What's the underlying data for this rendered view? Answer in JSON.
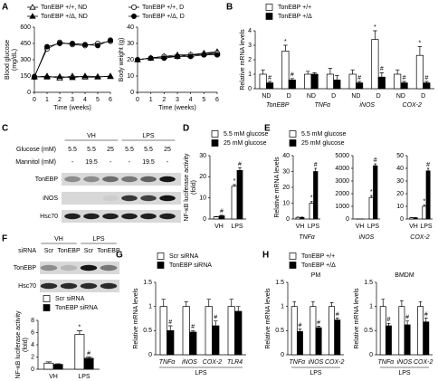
{
  "chart_data": [
    {
      "panel": "A",
      "type": "line",
      "ylabel": [
        "Blood glucose",
        "(mg/dL)"
      ],
      "xlabel": "Time (weeks)",
      "x": [
        0,
        1,
        2,
        3,
        4,
        5,
        6
      ],
      "xlim": [
        0,
        6
      ],
      "xticks": [
        0,
        1,
        2,
        3,
        4,
        5,
        6
      ],
      "ylim": [
        0,
        600
      ],
      "yticks": [
        0,
        150,
        300,
        450,
        600
      ],
      "legend": true,
      "series": [
        {
          "name": "TonEBP +/+, ND",
          "marker": "triangle",
          "color": "#ffffff",
          "values": [
            140,
            150,
            130,
            150,
            140,
            140,
            150
          ]
        },
        {
          "name": "TonEBP +/Δ, ND",
          "marker": "triangle",
          "color": "#000000",
          "values": [
            145,
            140,
            145,
            135,
            150,
            145,
            145
          ]
        },
        {
          "name": "TonEBP +/+, D",
          "marker": "circle",
          "color": "#ffffff",
          "values": [
            145,
            400,
            460,
            440,
            430,
            450,
            470
          ]
        },
        {
          "name": "TonEBP +/Δ, D",
          "marker": "circle",
          "color": "#000000",
          "values": [
            140,
            420,
            450,
            450,
            440,
            430,
            480
          ]
        }
      ]
    },
    {
      "type": "line",
      "ylabel": "Body weight (g)",
      "xlabel": "Time (weeks)",
      "x": [
        0,
        1,
        2,
        3,
        4,
        5,
        6
      ],
      "xlim": [
        0,
        6
      ],
      "xticks": [
        0,
        1,
        2,
        3,
        4,
        5,
        6
      ],
      "ylim": [
        0,
        40
      ],
      "yticks": [
        0,
        10,
        20,
        30,
        40
      ],
      "legend": false,
      "series": [
        {
          "name": "TonEBP +/+, ND",
          "marker": "triangle",
          "color": "#ffffff",
          "values": [
            20,
            21,
            22,
            23,
            23,
            24,
            25
          ]
        },
        {
          "name": "TonEBP +/Δ, ND",
          "marker": "triangle",
          "color": "#000000",
          "values": [
            20,
            21,
            22,
            22,
            23,
            24,
            24
          ]
        },
        {
          "name": "TonEBP +/+, D",
          "marker": "circle",
          "color": "#ffffff",
          "values": [
            20,
            21,
            22,
            22,
            23,
            23,
            24
          ]
        },
        {
          "name": "TonEBP +/Δ, D",
          "marker": "circle",
          "color": "#000000",
          "values": [
            20,
            21,
            21,
            22,
            22,
            23,
            23
          ]
        }
      ]
    },
    {
      "panel": "B",
      "type": "bar",
      "ylabel": "Relative mRNA levels",
      "ylim": [
        0,
        4
      ],
      "yticks": [
        0,
        1,
        2,
        3,
        4
      ],
      "categories": [
        "ND",
        "D",
        "ND",
        "D",
        "ND",
        "D",
        "ND",
        "D"
      ],
      "groups": [
        "TonEBP",
        "TNFα",
        "iNOS",
        "COX-2"
      ],
      "legend": true,
      "series": [
        {
          "name": "TonEBP +/+",
          "color": "#ffffff",
          "values": [
            1,
            2.6,
            1,
            1,
            1,
            3.4,
            1,
            2.3
          ],
          "errors": [
            0.3,
            0.4,
            0.2,
            0.4,
            0.3,
            0.6,
            0.3,
            0.6
          ],
          "markers": [
            null,
            "*",
            null,
            null,
            null,
            "*",
            null,
            "*"
          ]
        },
        {
          "name": "TonEBP +/Δ",
          "color": "#000000",
          "values": [
            0.4,
            0.6,
            1,
            0.6,
            0.4,
            0.8,
            0.4,
            0.4
          ],
          "errors": [
            0.1,
            0.1,
            0.1,
            0.3,
            0.1,
            0.3,
            0.1,
            0.1
          ],
          "markers": [
            "#",
            "#",
            null,
            null,
            "#",
            "#",
            "#",
            "#"
          ]
        }
      ]
    },
    {
      "panel": "D",
      "type": "bar",
      "ylabel": [
        "NF-κB luciferase activity",
        "(fold)"
      ],
      "categories": [
        "VH",
        "LPS"
      ],
      "ylim": [
        0,
        30
      ],
      "yticks": [
        0,
        10,
        20,
        30
      ],
      "legend": true,
      "series": [
        {
          "name": "5.5 mM glucose",
          "color": "#ffffff",
          "values": [
            1,
            15.5
          ],
          "errors": [
            0.2,
            0.8
          ],
          "markers": [
            null,
            "*"
          ]
        },
        {
          "name": "25 mM glucose",
          "color": "#000000",
          "values": [
            1.5,
            23
          ],
          "errors": [
            0.3,
            1.2
          ],
          "markers": [
            "#",
            "#"
          ]
        }
      ]
    },
    {
      "panel": "E",
      "type": "bar",
      "ylabel": "Relative mRNA levels",
      "xlabel": "TNFα",
      "categories": [
        "VH",
        "LPS"
      ],
      "ylim": [
        0,
        40
      ],
      "yticks": [
        0,
        10,
        20,
        30,
        40
      ],
      "legend": true,
      "series": [
        {
          "name": "5.5 mM glucose",
          "color": "#ffffff",
          "values": [
            1,
            10
          ],
          "errors": [
            0.2,
            1
          ],
          "markers": [
            null,
            "*"
          ]
        },
        {
          "name": "25 mM glucose",
          "color": "#000000",
          "values": [
            1,
            30
          ],
          "errors": [
            0.2,
            2
          ],
          "markers": [
            null,
            "#"
          ]
        }
      ]
    },
    {
      "type": "bar",
      "xlabel": "iNOS",
      "categories": [
        "VH",
        "LPS"
      ],
      "ylim": [
        0,
        5000
      ],
      "yticks": [
        0,
        1000,
        2000,
        3000,
        4000,
        5000
      ],
      "legend": false,
      "series": [
        {
          "name": "5.5 mM glucose",
          "color": "#ffffff",
          "values": [
            1,
            1700
          ],
          "errors": [
            0,
            150
          ],
          "markers": [
            null,
            "*"
          ]
        },
        {
          "name": "25 mM glucose",
          "color": "#000000",
          "values": [
            1,
            4200
          ],
          "errors": [
            0,
            150
          ],
          "markers": [
            null,
            "#"
          ]
        }
      ]
    },
    {
      "type": "bar",
      "xlabel": "COX-2",
      "categories": [
        "VH",
        "LPS"
      ],
      "ylim": [
        0,
        50
      ],
      "yticks": [
        0,
        10,
        20,
        30,
        40,
        50
      ],
      "legend": false,
      "series": [
        {
          "name": "5.5 mM glucose",
          "color": "#ffffff",
          "values": [
            1,
            10
          ],
          "errors": [
            0.2,
            1
          ],
          "markers": [
            null,
            "*"
          ]
        },
        {
          "name": "25 mM glucose",
          "color": "#000000",
          "values": [
            1,
            38
          ],
          "errors": [
            0.2,
            2
          ],
          "markers": [
            null,
            "#"
          ]
        }
      ]
    },
    {
      "type": "bar",
      "ylabel": [
        "NF-κB luciferase activity",
        "(fold)"
      ],
      "categories": [
        "VH",
        "LPS"
      ],
      "ylim": [
        0,
        8
      ],
      "yticks": [
        0,
        2,
        4,
        6,
        8
      ],
      "legend": true,
      "series": [
        {
          "name": "Scr siRNA",
          "color": "#ffffff",
          "values": [
            1,
            5.7
          ],
          "errors": [
            0.2,
            0.6
          ],
          "markers": [
            null,
            "*"
          ]
        },
        {
          "name": "TonEBP siRNA",
          "color": "#000000",
          "values": [
            0.8,
            1.8
          ],
          "errors": [
            0.1,
            0.2
          ],
          "markers": [
            null,
            "#"
          ]
        }
      ]
    },
    {
      "panel": "G",
      "type": "bar",
      "ylabel": "Relative mRNA levels",
      "xlabel": "LPS",
      "categories": [
        "TNFα",
        "iNOS",
        "COX-2",
        "TLR4"
      ],
      "ylim": [
        0,
        1.5
      ],
      "yticks": [
        0,
        0.5,
        1,
        1.5
      ],
      "legend": true,
      "series": [
        {
          "name": "Scr siRNA",
          "color": "#ffffff",
          "values": [
            1,
            1,
            1,
            1
          ],
          "errors": [
            0.15,
            0.1,
            0.15,
            0.15
          ],
          "markers": [
            null,
            null,
            null,
            null
          ]
        },
        {
          "name": "TonEBP siRNA",
          "color": "#000000",
          "values": [
            0.5,
            0.47,
            0.6,
            0.9
          ],
          "errors": [
            0.1,
            0.03,
            0.1,
            0.1
          ],
          "markers": [
            "#",
            "#",
            "#",
            null
          ]
        }
      ]
    },
    {
      "panel": "H",
      "type": "bar",
      "title": "PM",
      "ylabel": "Relative mRNA levels",
      "xlabel": "LPS",
      "categories": [
        "TNFα",
        "iNOS",
        "COX-2"
      ],
      "ylim": [
        0,
        1.5
      ],
      "yticks": [
        0,
        0.5,
        1,
        1.5
      ],
      "legend": true,
      "series": [
        {
          "name": "TonEBP +/+",
          "color": "#ffffff",
          "values": [
            1,
            1,
            1
          ],
          "errors": [
            0.1,
            0.1,
            0.08
          ],
          "markers": [
            null,
            null,
            null
          ]
        },
        {
          "name": "TonEBP +/Δ",
          "color": "#000000",
          "values": [
            0.48,
            0.56,
            0.72
          ],
          "errors": [
            0.05,
            0.03,
            0.04
          ],
          "markers": [
            "#",
            "#",
            "#"
          ]
        }
      ]
    },
    {
      "type": "bar",
      "title": "BMDM",
      "ylabel": "Relative mRNA levels",
      "xlabel": "LPS",
      "categories": [
        "TNFα",
        "iNOS",
        "COX-2"
      ],
      "ylim": [
        0,
        1.5
      ],
      "yticks": [
        0,
        0.5,
        1,
        1.5
      ],
      "legend": false,
      "series": [
        {
          "name": "TonEBP +/+",
          "color": "#ffffff",
          "values": [
            1,
            1,
            1
          ],
          "errors": [
            0.15,
            0.12,
            0.1
          ],
          "markers": [
            null,
            null,
            null
          ]
        },
        {
          "name": "TonEBP +/Δ",
          "color": "#000000",
          "values": [
            0.6,
            0.62,
            0.68
          ],
          "errors": [
            0.05,
            0.08,
            0.08
          ],
          "markers": [
            "#",
            "#",
            "#"
          ]
        }
      ]
    }
  ],
  "blots": [
    {
      "panel": "C",
      "conditions": [
        "VH",
        "LPS"
      ],
      "rows": [
        {
          "label": "Glucose (mM)",
          "cells": [
            "5.5",
            "5.5",
            "25",
            "5.5",
            "5.5",
            "25"
          ]
        },
        {
          "label": "Mannitol (mM)",
          "cells": [
            "-",
            "19.5",
            "-",
            "-",
            "19.5",
            "-"
          ]
        }
      ],
      "bands": [
        "TonEBP",
        "iNOS",
        "Hsc70"
      ]
    },
    {
      "panel": "F",
      "conditions": [
        "VH",
        "LPS"
      ],
      "rows": [
        {
          "label": "siRNA",
          "cells": [
            "Scr",
            "TonEBP",
            "Scr",
            "TonEBP"
          ]
        }
      ],
      "bands": [
        "TonEBP",
        "Hsc70"
      ]
    }
  ]
}
